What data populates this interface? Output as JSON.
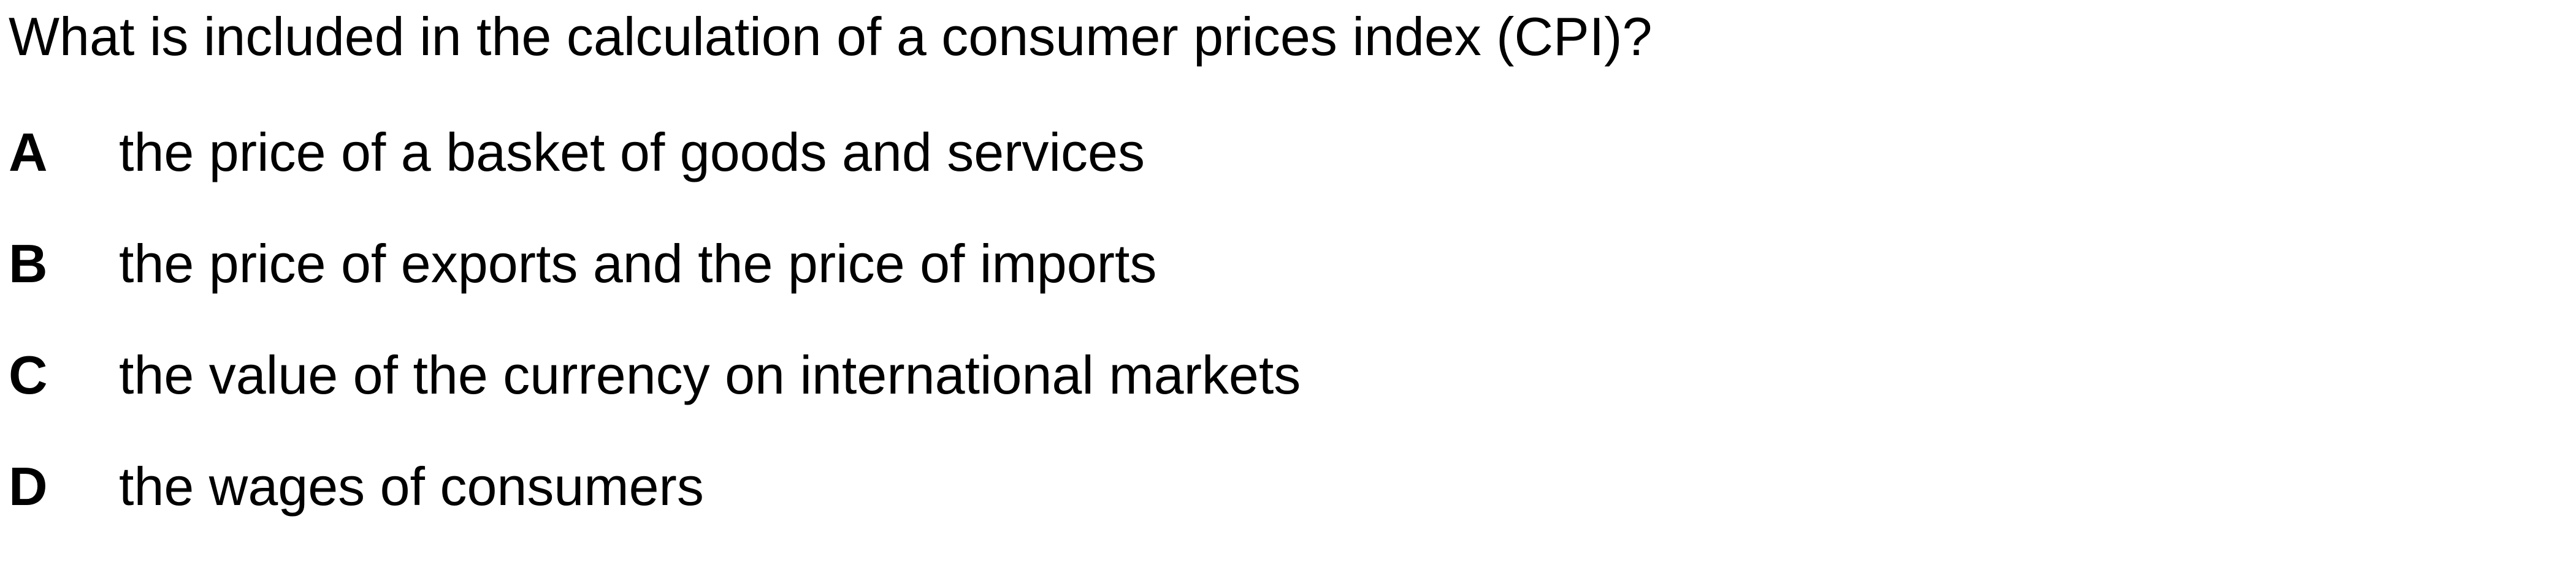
{
  "question": {
    "text": "What is included in the calculation of a consumer prices index (CPI)?"
  },
  "options": [
    {
      "letter": "A",
      "text": "the price of a basket of goods and services"
    },
    {
      "letter": "B",
      "text": "the price of exports and the price of imports"
    },
    {
      "letter": "C",
      "text": "the value of the currency on international markets"
    },
    {
      "letter": "D",
      "text": "the wages of consumers"
    }
  ]
}
